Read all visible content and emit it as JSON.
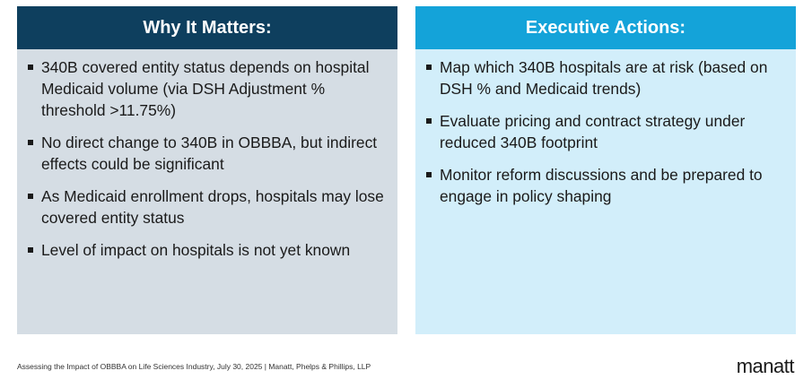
{
  "left_panel": {
    "title": "Why It Matters:",
    "bullets": [
      "340B covered entity status depends on hospital Medicaid volume (via DSH Adjustment % threshold >11.75%)",
      "No direct change to 340B in OBBBA, but indirect effects could be significant",
      "As Medicaid enrollment drops, hospitals may lose covered entity status",
      "Level of impact on hospitals is not yet known"
    ]
  },
  "right_panel": {
    "title": "Executive Actions:",
    "bullets": [
      "Map which 340B hospitals are at risk (based on DSH % and Medicaid trends)",
      "Evaluate pricing and contract strategy under reduced 340B footprint",
      "Monitor reform discussions and be prepared to engage in policy shaping"
    ]
  },
  "footer": {
    "text": "Assessing the Impact of OBBBA on Life Sciences Industry, July 30, 2025 | Manatt, Phelps & Phillips, LLP",
    "logo": "manatt"
  },
  "colors": {
    "left_header": "#0e3f5e",
    "left_body": "#d5dde4",
    "right_header": "#14a3d9",
    "right_body": "#d2eefa"
  }
}
